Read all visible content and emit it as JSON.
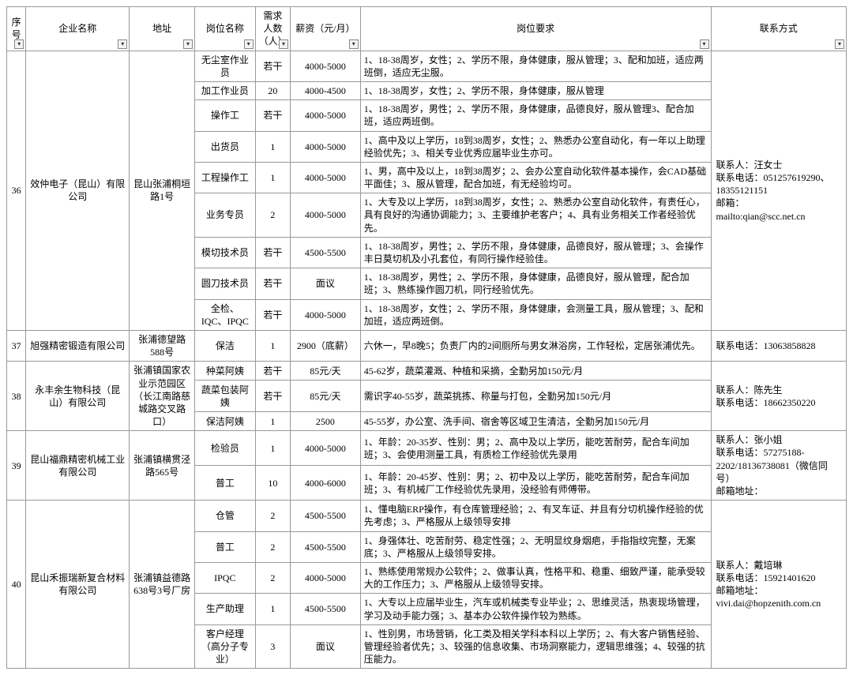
{
  "headers": {
    "seq": "序号",
    "company": "企业名称",
    "address": "地址",
    "position": "岗位名称",
    "count": "需求人数（人）",
    "salary": "薪资（元/月）",
    "requirement": "岗位要求",
    "contact": "联系方式"
  },
  "rows": [
    {
      "seq": "36",
      "company": "效仲电子（昆山）有限公司",
      "address": "昆山张浦桐垣路1号",
      "contact": "联系人：汪女士\n联系电话：051257619290、18355121151\n邮箱：\nmailto:qian@scc.net.cn",
      "positions": [
        {
          "name": "无尘室作业员",
          "count": "若干",
          "salary": "4000-5000",
          "req": "1、18-38周岁，女性；2、学历不限，身体健康，服从管理；3、配和加班，适应两班倒，适应无尘服。"
        },
        {
          "name": "加工作业员",
          "count": "20",
          "salary": "4000-4500",
          "req": "1、18-38周岁，女性；2、学历不限，身体健康，服从管理"
        },
        {
          "name": "操作工",
          "count": "若干",
          "salary": "4000-5000",
          "req": "1、18-38周岁，男性；2、学历不限，身体健康，品德良好，服从管理3、配合加班，适应两班倒。"
        },
        {
          "name": "出货员",
          "count": "1",
          "salary": "4000-5000",
          "req": "1、高中及以上学历，18到38周岁，女性；2、熟悉办公室自动化，有一年以上助理经验优先；3、相关专业优秀应届毕业生亦可。"
        },
        {
          "name": "工程操作工",
          "count": "1",
          "salary": "4000-5000",
          "req": "1、男，高中及以上，18到38周岁；2、会办公室自动化软件基本操作，会CAD基础平面佳；3、服从管理，配合加班，有无经验均可。"
        },
        {
          "name": "业务专员",
          "count": "2",
          "salary": "4000-5000",
          "req": "1、大专及以上学历，18到38周岁，女性；2、熟悉办公室自动化软件，有责任心，具有良好的沟通协调能力；3、主要维护老客户；4、具有业务相关工作者经验优先。"
        },
        {
          "name": "模切技术员",
          "count": "若干",
          "salary": "4500-5500",
          "req": "1、18-38周岁，男性；2、学历不限，身体健康，品德良好，服从管理；3、会操作丰日莫切机及小孔套位，有同行操作经验佳。"
        },
        {
          "name": "圆刀技术员",
          "count": "若干",
          "salary": "面议",
          "req": "1、18-38周岁，男性；2、学历不限，身体健康，品德良好，服从管理，配合加班；3、熟练操作圆刀机，同行经验优先。"
        },
        {
          "name": "全检、IQC、IPQC",
          "count": "若干",
          "salary": "4000-5000",
          "req": "1、18-38周岁，女性；2、学历不限，身体健康，会测量工具，服从管理；3、配和加班，适应两班倒。"
        }
      ]
    },
    {
      "seq": "37",
      "company": "旭强精密锻造有限公司",
      "address": "张浦德望路588号",
      "contact": "联系电话：13063858828",
      "positions": [
        {
          "name": "保洁",
          "count": "1",
          "salary": "2900（底薪）",
          "req": "六休一，早8晚5；负责厂内的2间厕所与男女淋浴房，工作轻松，定居张浦优先。"
        }
      ]
    },
    {
      "seq": "38",
      "company": "永丰余生物科技（昆山）有限公司",
      "address": "张浦镇国家农业示范园区（长江南路慈城路交叉路口）",
      "contact": "联系人：陈先生\n联系电话：18662350220",
      "positions": [
        {
          "name": "种菜阿姨",
          "count": "若干",
          "salary": "85元/天",
          "req": "45-62岁，蔬菜灌溉、种植和采摘，全勤另加150元/月"
        },
        {
          "name": "蔬菜包装阿姨",
          "count": "若干",
          "salary": "85元/天",
          "req": "需识字40-55岁，蔬菜挑拣、称量与打包，全勤另加150元/月"
        },
        {
          "name": "保洁阿姨",
          "count": "1",
          "salary": "2500",
          "req": "45-55岁，办公室、洗手间、宿舍等区域卫生清洁，全勤另加150元/月"
        }
      ]
    },
    {
      "seq": "39",
      "company": "昆山福鼎精密机械工业有限公司",
      "address": "张浦镇横贯泾路565号",
      "contact": "联系人：张小姐\n联系电话：57275188-2202/18136738081（微信同号）\n邮箱地址：",
      "positions": [
        {
          "name": "检验员",
          "count": "1",
          "salary": "4000-5000",
          "req": "1、年龄：20-35岁、性别：男；2、高中及以上学历，能吃苦耐劳，配合车间加班；3、会使用测量工具，有质检工作经验优先录用"
        },
        {
          "name": "普工",
          "count": "10",
          "salary": "4000-6000",
          "req": "1、年龄：20-45岁、性别：男；2、初中及以上学历，能吃苦耐劳，配合车间加班；3、有机械厂工作经验优先录用，没经验有师傅带。"
        }
      ]
    },
    {
      "seq": "40",
      "company": "昆山禾振瑞新复合材料有限公司",
      "address": "张浦镇益德路638号3号厂房",
      "contact": "联系人：戴培琳\n联系电话：15921401620\n邮箱地址：\nvivi.dai@hopzenith.com.cn",
      "positions": [
        {
          "name": "仓管",
          "count": "2",
          "salary": "4500-5500",
          "req": "1、懂电脑ERP操作，有仓库管理经验；2、有叉车证、并且有分切机操作经验的优先考虑；3、严格服从上级领导安排"
        },
        {
          "name": "普工",
          "count": "2",
          "salary": "4500-5500",
          "req": "1、身强体壮、吃苦耐劳、稳定性强；2、无明显纹身烟疤，手指指纹完整，无案底；3、严格服从上级领导安排。"
        },
        {
          "name": "IPQC",
          "count": "2",
          "salary": "4000-5000",
          "req": "1、熟练使用常规办公软件；2、做事认真，性格平和、稳重、细致严谨，能承受较大的工作压力；3、严格服从上级领导安排。"
        },
        {
          "name": "生产助理",
          "count": "1",
          "salary": "4500-5500",
          "req": "1、大专以上应届毕业生，汽车或机械类专业毕业；2、思维灵活，热衷现场管理，学习及动手能力强；3、基本办公软件操作较为熟练。"
        },
        {
          "name": "客户经理（高分子专业）",
          "count": "3",
          "salary": "面议",
          "req": "1、性别男，市场营销，化工类及相关学科本科以上学历；2、有大客户销售经验、管理经验者优先；3、较强的信息收集、市场洞察能力，逻辑思维强；4、较强的抗压能力。"
        }
      ]
    }
  ]
}
